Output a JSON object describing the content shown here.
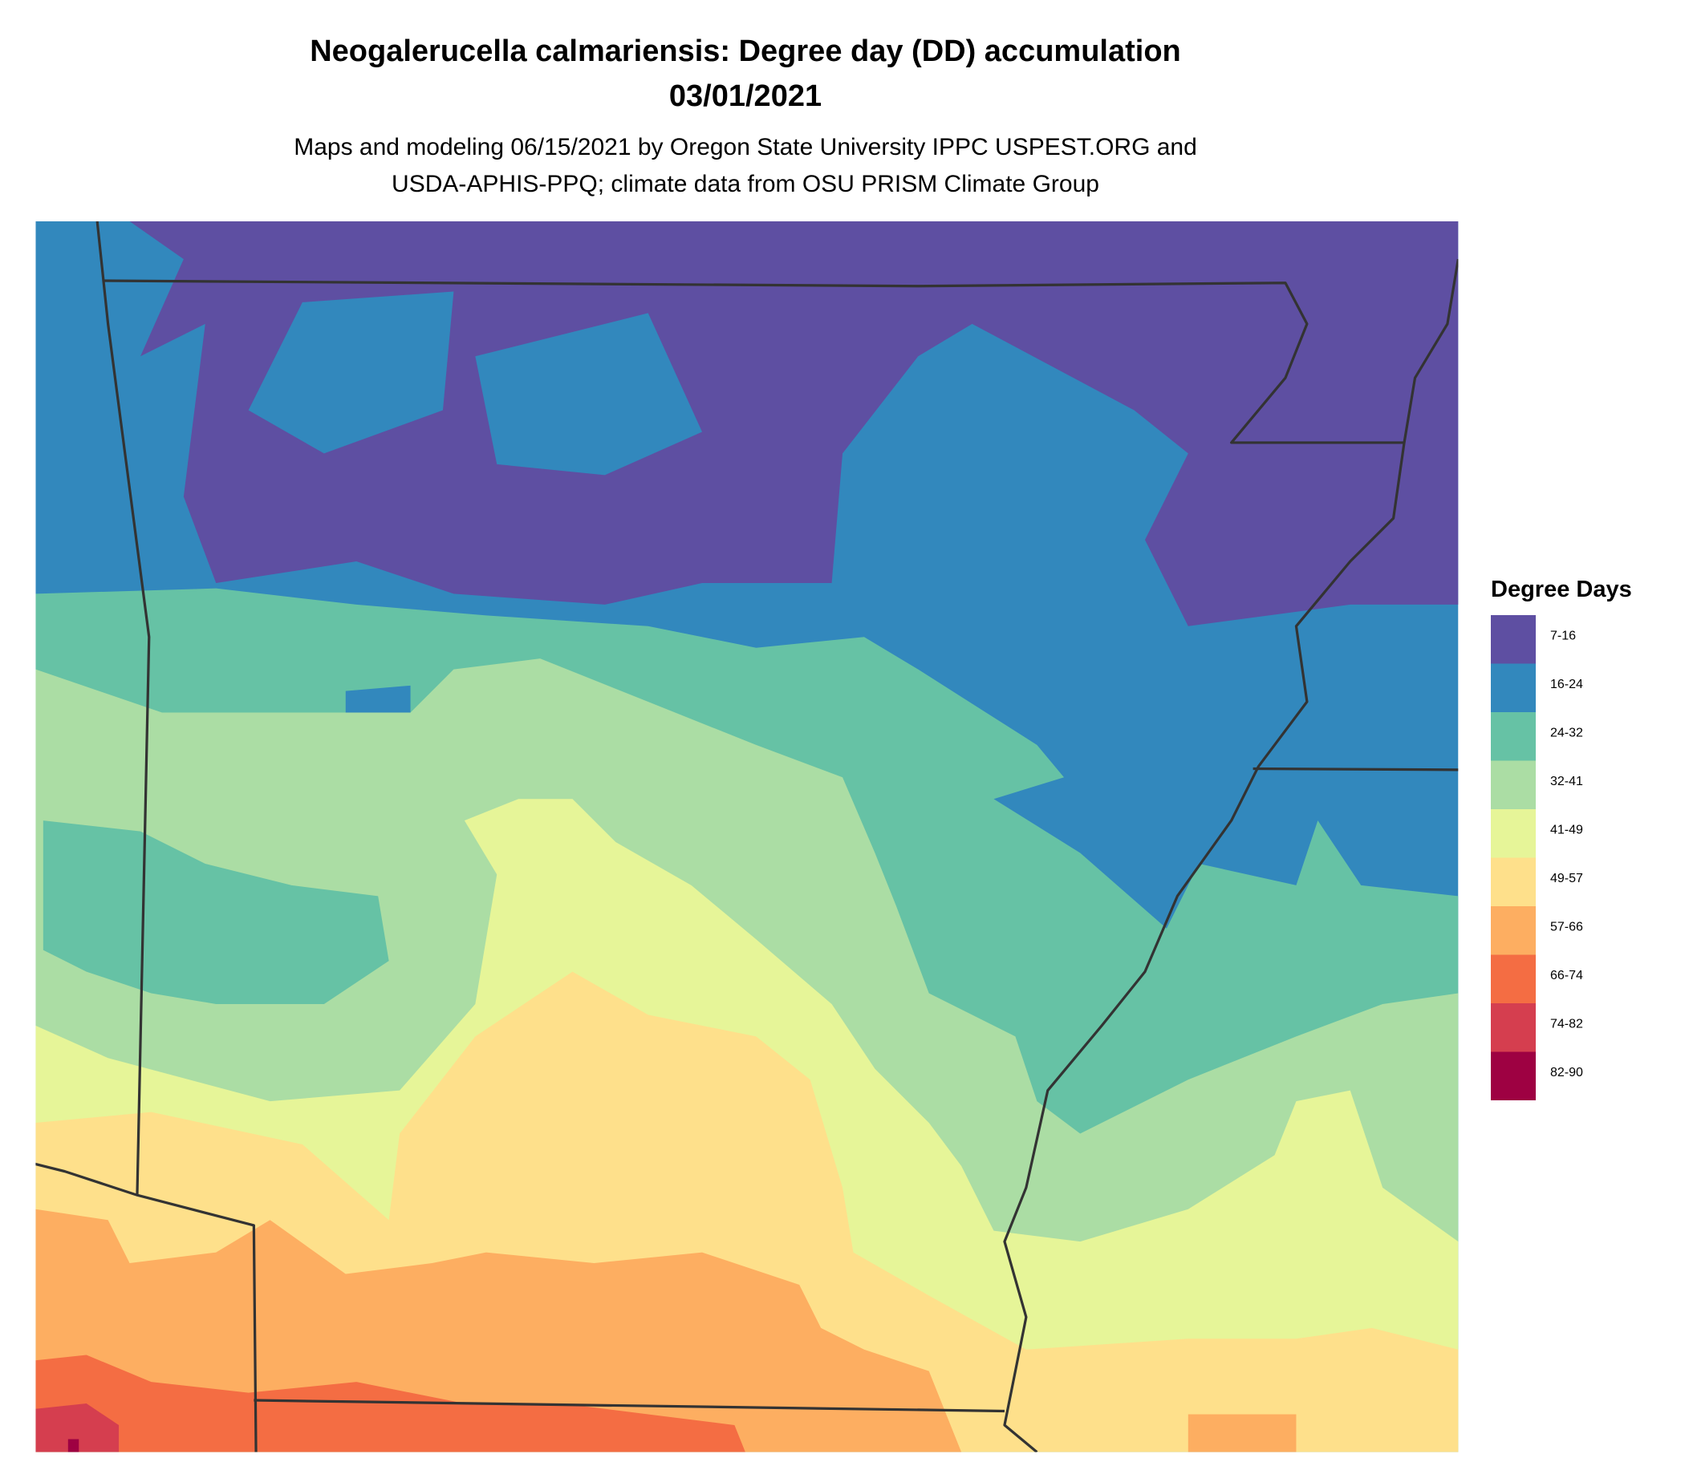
{
  "header": {
    "title": [
      "Neogalerucella calmariensis: Degree day (DD) accumulation",
      "03/01/2021"
    ],
    "subtitle": [
      "Maps and modeling 06/15/2021 by Oregon State University IPPC USPEST.ORG and",
      "USDA-APHIS-PPQ; climate data from OSU PRISM Climate Group"
    ]
  },
  "legend": {
    "title": "Degree Days",
    "items": [
      {
        "label": "7-16",
        "color": "#5E4FA2"
      },
      {
        "label": "16-24",
        "color": "#3288BD"
      },
      {
        "label": "24-32",
        "color": "#66C2A5"
      },
      {
        "label": "32-41",
        "color": "#ABDDA4"
      },
      {
        "label": "41-49",
        "color": "#E6F598"
      },
      {
        "label": "49-57",
        "color": "#FEE08B"
      },
      {
        "label": "57-66",
        "color": "#FDAE61"
      },
      {
        "label": "66-74",
        "color": "#F46D43"
      },
      {
        "label": "74-82",
        "color": "#D53E4F"
      },
      {
        "label": "82-90",
        "color": "#9E0142"
      }
    ]
  }
}
